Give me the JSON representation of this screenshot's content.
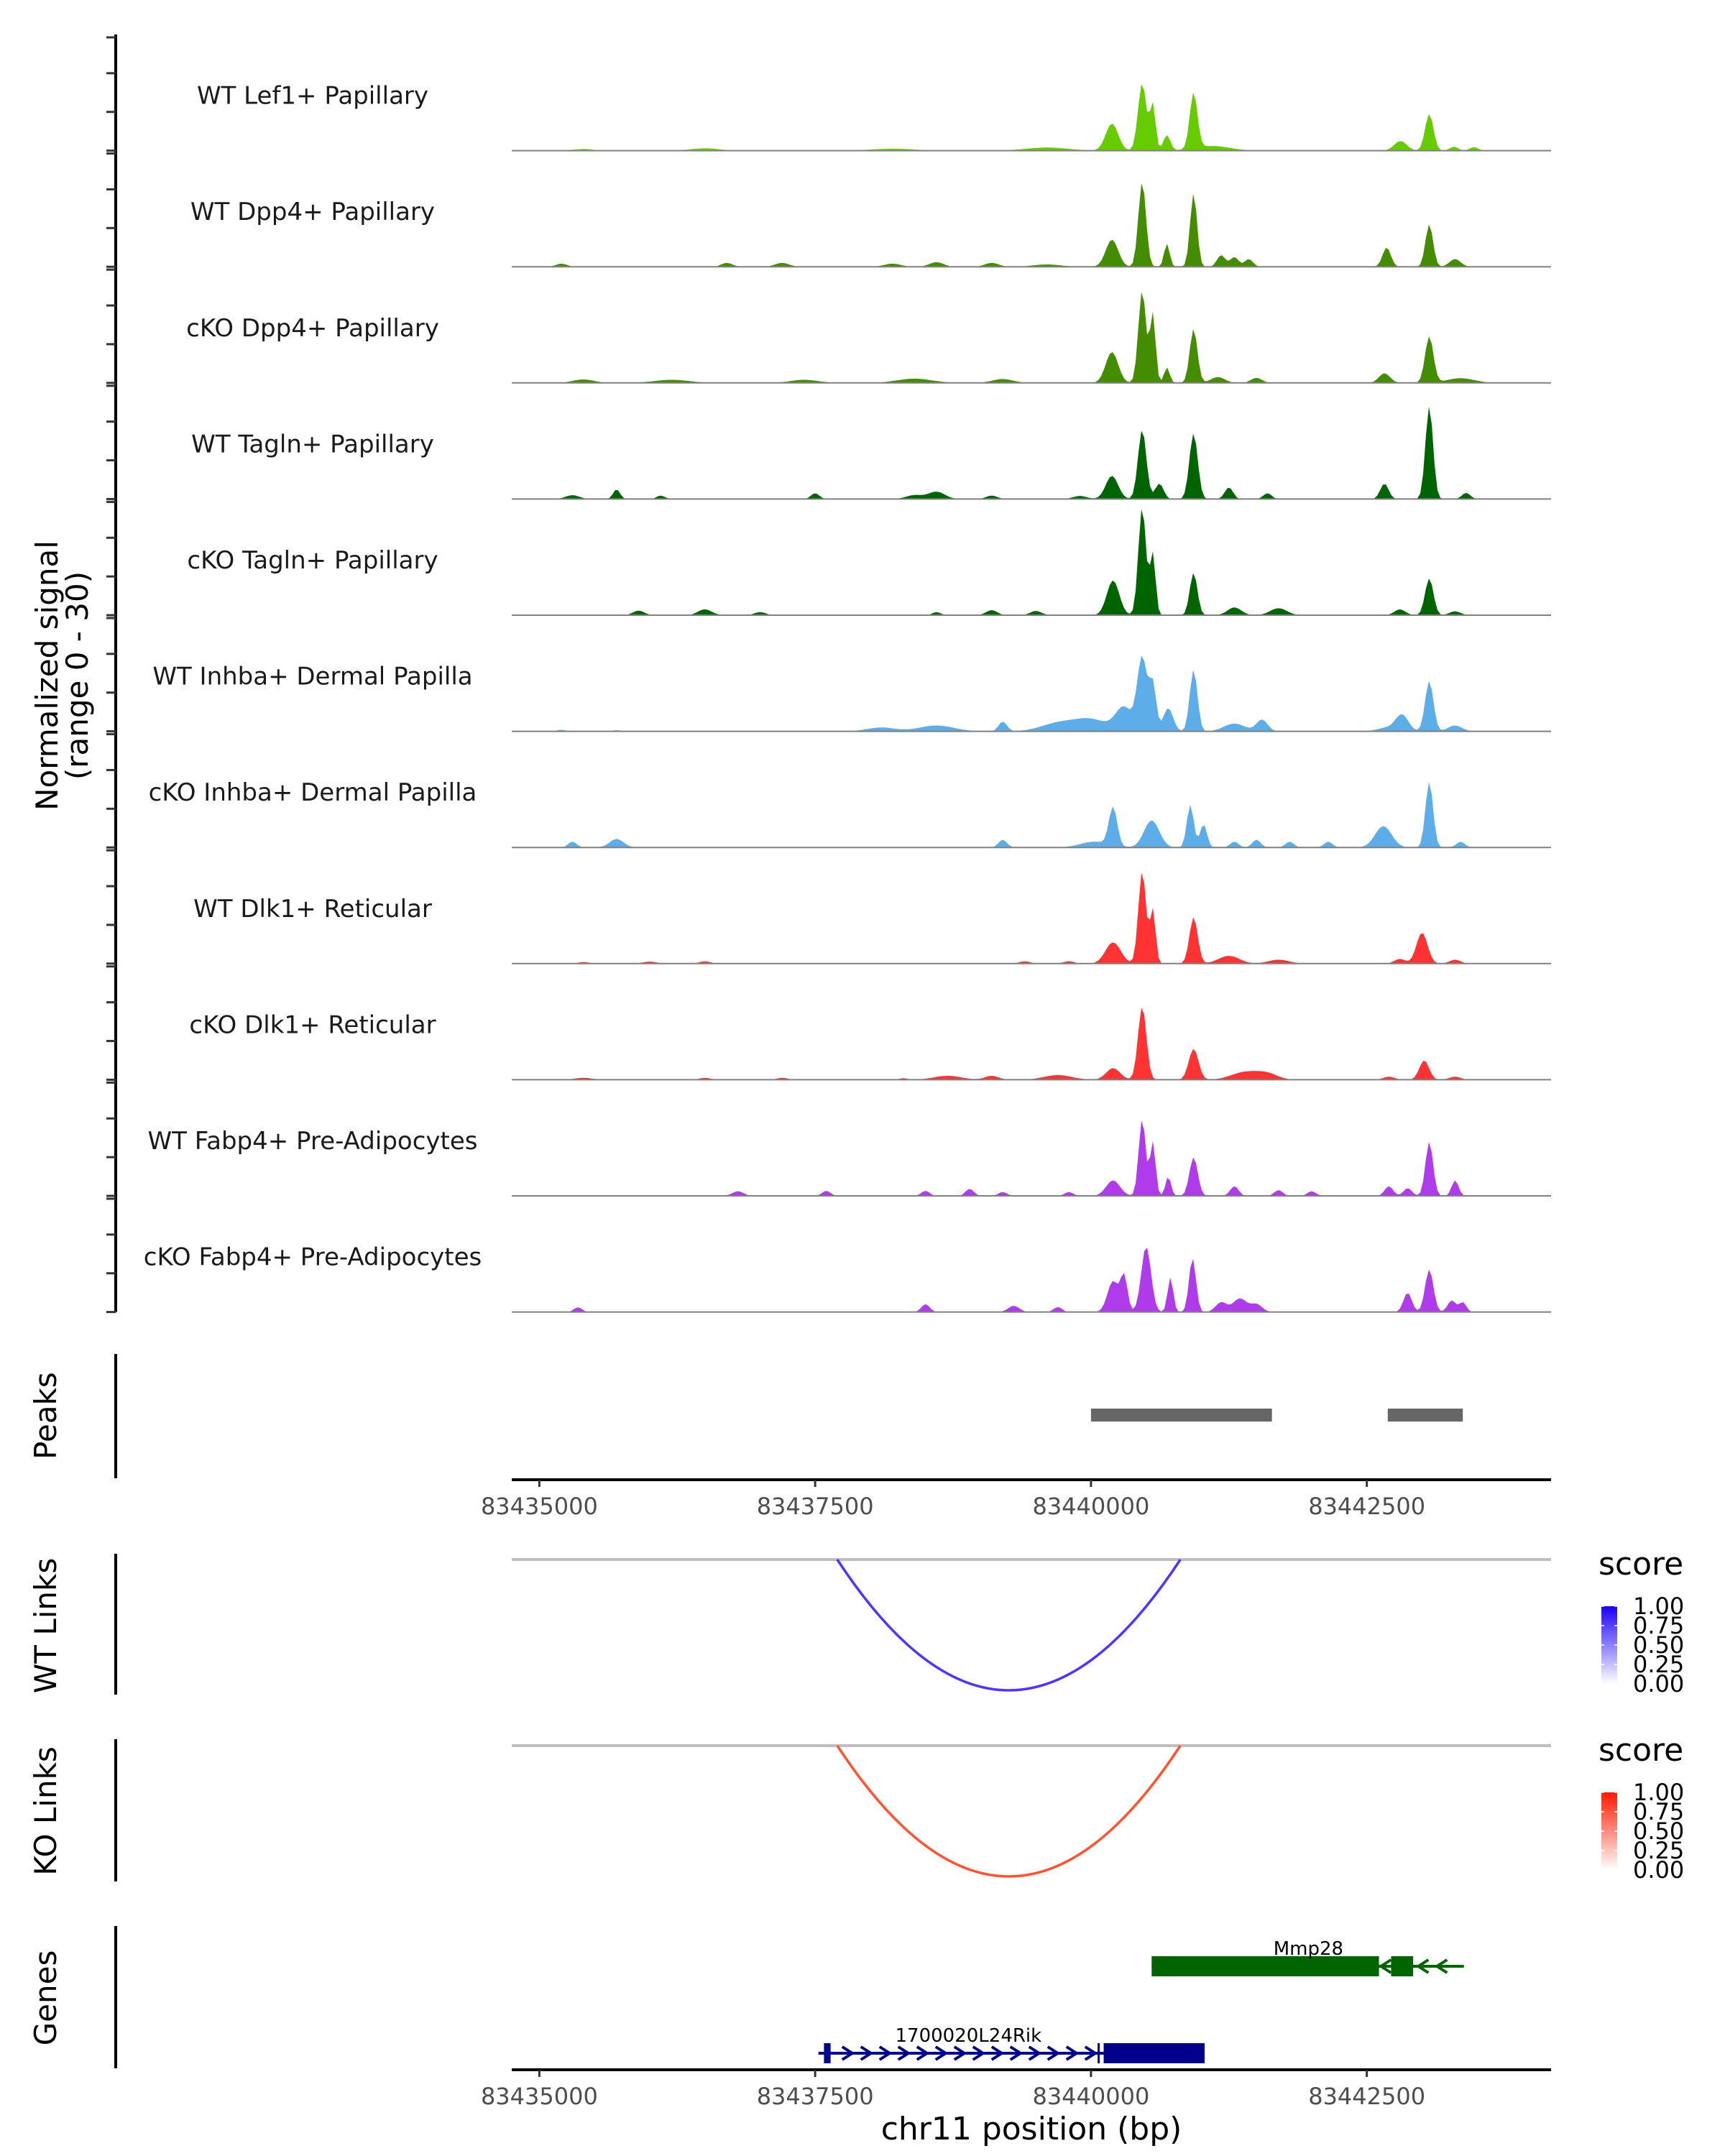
{
  "chart_data": {
    "type": "area",
    "title": "",
    "chromosome": "chr11",
    "xlabel": "chr11 position (bp)",
    "xlim": [
      83434750,
      83444170
    ],
    "x_ticks": [
      83435000,
      83437500,
      83440000,
      83442500
    ],
    "x_tick_labels": [
      "83435000",
      "83437500",
      "83440000",
      "83442500"
    ],
    "coverage": {
      "ylabel_line1": "Normalized signal",
      "ylabel_line2": "(range 0 - 30)",
      "ylim": [
        0,
        30
      ],
      "tracks": [
        {
          "name": "WT Lef1+ Papillary",
          "color": "#66cc00",
          "peaks": [
            [
              83440190,
              7,
              90
            ],
            [
              83440464,
              17.5,
              60
            ],
            [
              83440560,
              12,
              40
            ],
            [
              83440688,
              4,
              50
            ],
            [
              83440930,
              14.5,
              55
            ],
            [
              83441100,
              1.2,
              250
            ],
            [
              83442805,
              2.5,
              90
            ],
            [
              83443066,
              9.5,
              60
            ],
            [
              83443290,
              1,
              60
            ],
            [
              83443470,
              0.9,
              60
            ],
            [
              83435400,
              0.4,
              150
            ],
            [
              83436500,
              0.6,
              200
            ],
            [
              83438200,
              0.5,
              300
            ],
            [
              83439600,
              0.8,
              300
            ]
          ]
        },
        {
          "name": "WT Dpp4+ Papillary",
          "color": "#448c00",
          "peaks": [
            [
              83440190,
              7,
              90
            ],
            [
              83440464,
              22,
              55
            ],
            [
              83440688,
              6,
              40
            ],
            [
              83440930,
              19,
              50
            ],
            [
              83441180,
              3,
              60
            ],
            [
              83441300,
              2.5,
              60
            ],
            [
              83441430,
              2,
              60
            ],
            [
              83442680,
              5,
              60
            ],
            [
              83443066,
              11,
              55
            ],
            [
              83443300,
              2,
              80
            ],
            [
              83435200,
              0.8,
              80
            ],
            [
              83436700,
              1,
              80
            ],
            [
              83437200,
              1,
              100
            ],
            [
              83438200,
              0.8,
              120
            ],
            [
              83438600,
              1.2,
              100
            ],
            [
              83439100,
              1,
              100
            ],
            [
              83439600,
              0.6,
              200
            ]
          ]
        },
        {
          "name": "cKO Dpp4+ Papillary",
          "color": "#448c00",
          "peaks": [
            [
              83440190,
              8,
              90
            ],
            [
              83440464,
              24,
              55
            ],
            [
              83440560,
              18,
              40
            ],
            [
              83440688,
              4,
              40
            ],
            [
              83440930,
              14,
              55
            ],
            [
              83441150,
              1.5,
              100
            ],
            [
              83441500,
              1.3,
              80
            ],
            [
              83442660,
              2.5,
              80
            ],
            [
              83443066,
              12,
              60
            ],
            [
              83443350,
              1.2,
              200
            ],
            [
              83435400,
              0.9,
              150
            ],
            [
              83436200,
              0.8,
              250
            ],
            [
              83437400,
              0.8,
              200
            ],
            [
              83438400,
              1.1,
              250
            ],
            [
              83439200,
              1,
              150
            ]
          ]
        },
        {
          "name": "WT Tagln+ Papillary",
          "color": "#006400",
          "peaks": [
            [
              83440190,
              6,
              90
            ],
            [
              83440464,
              18,
              60
            ],
            [
              83440620,
              4,
              60
            ],
            [
              83440930,
              17,
              60
            ],
            [
              83441250,
              3,
              60
            ],
            [
              83441600,
              1.5,
              60
            ],
            [
              83442660,
              4,
              60
            ],
            [
              83443066,
              24,
              55
            ],
            [
              83443400,
              1.6,
              60
            ],
            [
              83435300,
              1,
              100
            ],
            [
              83435700,
              2.5,
              50
            ],
            [
              83436100,
              0.9,
              60
            ],
            [
              83437500,
              1.5,
              60
            ],
            [
              83438400,
              1,
              120
            ],
            [
              83438600,
              1.9,
              120
            ],
            [
              83439100,
              0.9,
              80
            ],
            [
              83439900,
              0.8,
              100
            ]
          ]
        },
        {
          "name": "cKO Tagln+ Papillary",
          "color": "#006400",
          "peaks": [
            [
              83440200,
              9,
              90
            ],
            [
              83440464,
              28,
              55
            ],
            [
              83440560,
              16,
              40
            ],
            [
              83440930,
              11,
              55
            ],
            [
              83441300,
              2,
              100
            ],
            [
              83441700,
              1.8,
              120
            ],
            [
              83442800,
              1.5,
              80
            ],
            [
              83443066,
              9.5,
              60
            ],
            [
              83443300,
              1,
              80
            ],
            [
              83435900,
              1.2,
              80
            ],
            [
              83436500,
              1.5,
              100
            ],
            [
              83437000,
              0.8,
              80
            ],
            [
              83438600,
              0.8,
              60
            ],
            [
              83439100,
              1.3,
              80
            ],
            [
              83439500,
              1.1,
              80
            ]
          ]
        },
        {
          "name": "WT Inhba+ Dermal Papilla",
          "color": "#5dade8",
          "peaks": [
            [
              83440000,
              3,
              250
            ],
            [
              83440300,
              6,
              120
            ],
            [
              83440464,
              19,
              70
            ],
            [
              83440560,
              12,
              50
            ],
            [
              83440700,
              6,
              70
            ],
            [
              83440930,
              16,
              55
            ],
            [
              83441300,
              2,
              150
            ],
            [
              83441550,
              3,
              80
            ],
            [
              83442700,
              1,
              150
            ],
            [
              83442820,
              4,
              90
            ],
            [
              83443066,
              13,
              60
            ],
            [
              83443300,
              1.5,
              100
            ],
            [
              83438100,
              1,
              200
            ],
            [
              83438600,
              1.5,
              250
            ],
            [
              83439200,
              2.5,
              60
            ],
            [
              83439700,
              2,
              250
            ],
            [
              83435200,
              0.4,
              60
            ],
            [
              83435700,
              0.3,
              60
            ]
          ]
        },
        {
          "name": "cKO Inhba+ Dermal Papilla",
          "color": "#5dade8",
          "peaks": [
            [
              83440200,
              10,
              60
            ],
            [
              83440550,
              7,
              110
            ],
            [
              83440900,
              11,
              50
            ],
            [
              83441020,
              6,
              50
            ],
            [
              83440030,
              1.5,
              200
            ],
            [
              83441300,
              1.5,
              60
            ],
            [
              83441500,
              2,
              60
            ],
            [
              83442650,
              5.5,
              120
            ],
            [
              83443066,
              17,
              55
            ],
            [
              83443350,
              1.5,
              60
            ],
            [
              83435300,
              1.5,
              60
            ],
            [
              83435700,
              2.2,
              100
            ],
            [
              83439200,
              2,
              60
            ],
            [
              83441800,
              1.5,
              60
            ],
            [
              83442150,
              1.5,
              60
            ]
          ]
        },
        {
          "name": "WT Dlk1+ Reticular",
          "color": "#ff3333",
          "peaks": [
            [
              83440200,
              5.5,
              110
            ],
            [
              83440464,
              24,
              55
            ],
            [
              83440560,
              14,
              40
            ],
            [
              83440930,
              12,
              60
            ],
            [
              83441250,
              2,
              150
            ],
            [
              83441700,
              1,
              150
            ],
            [
              83442800,
              1.2,
              80
            ],
            [
              83443000,
              8,
              80
            ],
            [
              83443300,
              1,
              80
            ],
            [
              83435400,
              0.4,
              80
            ],
            [
              83436000,
              0.5,
              100
            ],
            [
              83436500,
              0.6,
              80
            ],
            [
              83439400,
              0.6,
              80
            ],
            [
              83439800,
              0.6,
              80
            ]
          ]
        },
        {
          "name": "cKO Dlk1+ Reticular",
          "color": "#ff3333",
          "peaks": [
            [
              83440200,
              3,
              100
            ],
            [
              83440464,
              19,
              60
            ],
            [
              83440930,
              8,
              70
            ],
            [
              83441400,
              2,
              200
            ],
            [
              83441600,
              1.4,
              150
            ],
            [
              83442700,
              0.8,
              80
            ],
            [
              83443020,
              5,
              70
            ],
            [
              83443300,
              0.8,
              80
            ],
            [
              83435400,
              0.5,
              120
            ],
            [
              83436500,
              0.5,
              80
            ],
            [
              83437200,
              0.5,
              80
            ],
            [
              83438300,
              0.4,
              60
            ],
            [
              83438700,
              1,
              200
            ],
            [
              83439100,
              1,
              100
            ],
            [
              83439700,
              1.2,
              200
            ]
          ]
        },
        {
          "name": "WT Fabp4+ Pre-Adipocytes",
          "color": "#b03bea",
          "peaks": [
            [
              83440200,
              4,
              100
            ],
            [
              83440464,
              20,
              50
            ],
            [
              83440560,
              14,
              40
            ],
            [
              83440700,
              5,
              40
            ],
            [
              83440930,
              10,
              60
            ],
            [
              83441300,
              2.5,
              60
            ],
            [
              83441700,
              1.5,
              60
            ],
            [
              83442000,
              1.2,
              60
            ],
            [
              83442700,
              2.5,
              60
            ],
            [
              83442870,
              2,
              60
            ],
            [
              83443066,
              14,
              55
            ],
            [
              83443300,
              4,
              50
            ],
            [
              83436800,
              1.2,
              80
            ],
            [
              83437600,
              1.3,
              60
            ],
            [
              83438500,
              1.3,
              60
            ],
            [
              83438900,
              1.8,
              60
            ],
            [
              83439200,
              1,
              60
            ],
            [
              83439800,
              1,
              60
            ]
          ]
        },
        {
          "name": "cKO Fabp4+ Pre-Adipocytes",
          "color": "#b03bea",
          "peaks": [
            [
              83440200,
              8,
              80
            ],
            [
              83440300,
              9,
              50
            ],
            [
              83440500,
              17,
              70
            ],
            [
              83440720,
              9,
              40
            ],
            [
              83440920,
              14,
              50
            ],
            [
              83441180,
              2.5,
              80
            ],
            [
              83441350,
              3.5,
              100
            ],
            [
              83441500,
              2,
              80
            ],
            [
              83442870,
              5,
              60
            ],
            [
              83443066,
              11,
              60
            ],
            [
              83443270,
              3,
              60
            ],
            [
              83443370,
              2.5,
              50
            ],
            [
              83435350,
              1.2,
              60
            ],
            [
              83438500,
              2,
              60
            ],
            [
              83439300,
              1.6,
              80
            ],
            [
              83439700,
              1.3,
              60
            ]
          ]
        }
      ]
    },
    "peaks_track": {
      "label": "Peaks",
      "color": "#666666",
      "regions": [
        [
          83440000,
          83441640
        ],
        [
          83442690,
          83443370
        ]
      ]
    },
    "links": [
      {
        "label": "WT Links",
        "start": 83437700,
        "end": 83440810,
        "score": 0.8,
        "legend": {
          "title": "score",
          "ticks": [
            "1.00",
            "0.75",
            "0.50",
            "0.25",
            "0.00"
          ],
          "low": "#ffffff",
          "high": "#1a00ff",
          "line_color": "#5533ff"
        }
      },
      {
        "label": "KO Links",
        "start": 83437700,
        "end": 83440810,
        "score": 0.8,
        "legend": {
          "title": "score",
          "ticks": [
            "1.00",
            "0.75",
            "0.50",
            "0.25",
            "0.00"
          ],
          "low": "#ffffff",
          "high": "#ff1a00",
          "line_color": "#ff5533"
        }
      }
    ],
    "genes": {
      "label": "Genes",
      "items": [
        {
          "name": "Mmp28",
          "strand": "-",
          "color": "#006400",
          "start": 83440550,
          "end": 83443380,
          "exons": [
            [
              83440550,
              83442610
            ],
            [
              83442720,
              83442920
            ]
          ]
        },
        {
          "name": "1700020L24Rik",
          "strand": "+",
          "color": "#00008b",
          "start": 83437530,
          "end": 83441030,
          "exons": [
            [
              83437580,
              83437640
            ],
            [
              83440060,
              83440070
            ],
            [
              83440115,
              83441030
            ]
          ]
        }
      ]
    }
  }
}
